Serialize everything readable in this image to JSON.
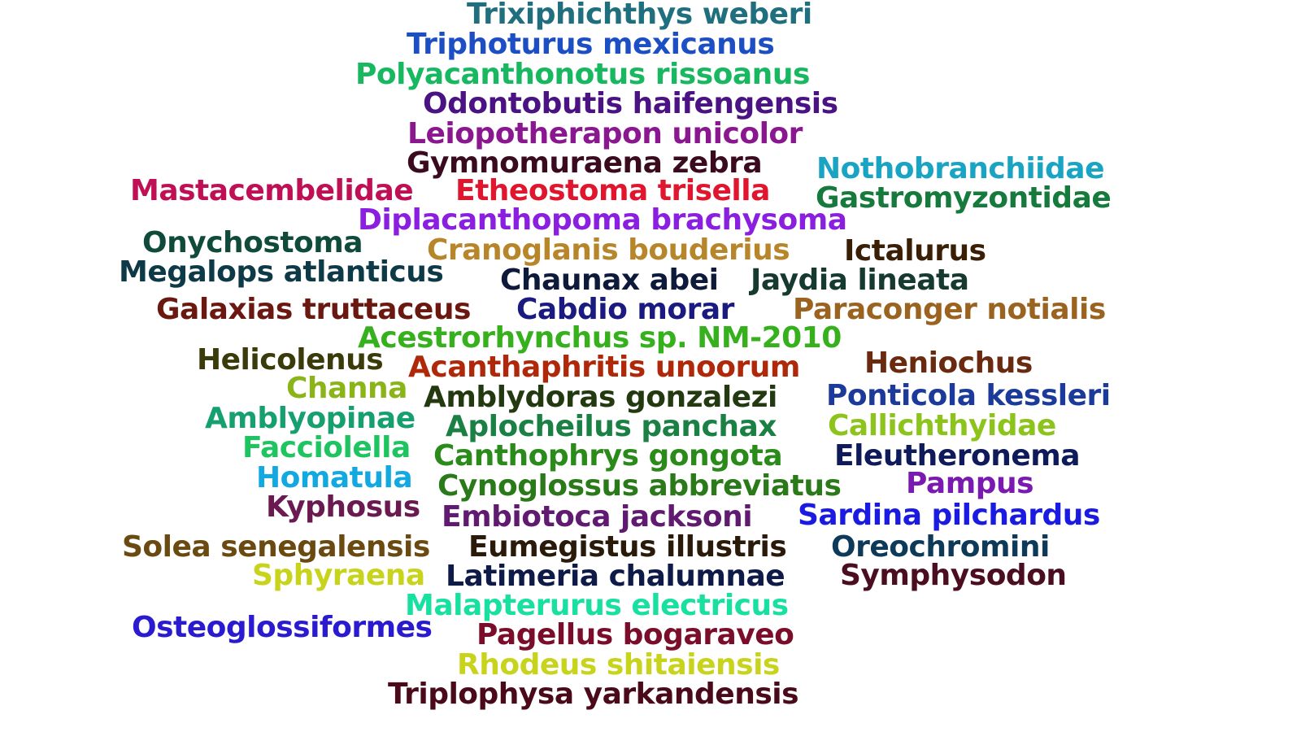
{
  "words": [
    {
      "text": "Trixiphichthys weberi",
      "color": "#1f6f7f"
    },
    {
      "text": "Triphoturus mexicanus",
      "color": "#1c4fc4"
    },
    {
      "text": "Polyacanthonotus rissoanus",
      "color": "#18b860"
    },
    {
      "text": "Odontobutis haifengensis",
      "color": "#4a1283"
    },
    {
      "text": "Leiopotherapon unicolor",
      "color": "#8b1790"
    },
    {
      "text": "Gymnomuraena zebra",
      "color": "#3a0a1e"
    },
    {
      "text": "Nothobranchiidae",
      "color": "#1aa4c4"
    },
    {
      "text": "Mastacembelidae",
      "color": "#c01055"
    },
    {
      "text": "Etheostoma trisella",
      "color": "#e0162e"
    },
    {
      "text": "Gastromyzontidae",
      "color": "#157a3c"
    },
    {
      "text": "Diplacanthopoma brachysoma",
      "color": "#8b1fe0"
    },
    {
      "text": "Onychostoma",
      "color": "#0f4a3a"
    },
    {
      "text": "Cranoglanis bouderius",
      "color": "#b8862a"
    },
    {
      "text": "Ictalurus",
      "color": "#3a1e06"
    },
    {
      "text": "Megalops atlanticus",
      "color": "#0e3a48"
    },
    {
      "text": "Chaunax abei",
      "color": "#0d1a3a"
    },
    {
      "text": "Jaydia lineata",
      "color": "#163a30"
    },
    {
      "text": "Galaxias truttaceus",
      "color": "#6a1810"
    },
    {
      "text": "Cabdio morar",
      "color": "#1a1a80"
    },
    {
      "text": "Paraconger notialis",
      "color": "#9a6420"
    },
    {
      "text": "Acestrorhynchus sp. NM-2010",
      "color": "#36b01c"
    },
    {
      "text": "Helicolenus",
      "color": "#3a3a0a"
    },
    {
      "text": "Acanthaphritis unoorum",
      "color": "#b0280a"
    },
    {
      "text": "Heniochus",
      "color": "#6a2a10"
    },
    {
      "text": "Channa",
      "color": "#8ab418"
    },
    {
      "text": "Amblydoras gonzalezi",
      "color": "#233a10"
    },
    {
      "text": "Ponticola kessleri",
      "color": "#1c3a9a"
    },
    {
      "text": "Amblyopinae",
      "color": "#16a070"
    },
    {
      "text": "Aplocheilus panchax",
      "color": "#1a8044"
    },
    {
      "text": "Callichthyidae",
      "color": "#8cc41c"
    },
    {
      "text": "Facciolella",
      "color": "#1ec460"
    },
    {
      "text": "Canthophrys gongota",
      "color": "#2a8a1a"
    },
    {
      "text": "Eleutheronema",
      "color": "#0e1a5a"
    },
    {
      "text": "Homatula",
      "color": "#12a8e0"
    },
    {
      "text": "Cynoglossus abbreviatus",
      "color": "#2a7a1a"
    },
    {
      "text": "Pampus",
      "color": "#7a1ab0"
    },
    {
      "text": "Kyphosus",
      "color": "#6a1a50"
    },
    {
      "text": "Embiotoca jacksoni",
      "color": "#601a70"
    },
    {
      "text": "Sardina pilchardus",
      "color": "#1a1ae0"
    },
    {
      "text": "Solea senegalensis",
      "color": "#6a4a10"
    },
    {
      "text": "Eumegistus illustris",
      "color": "#2a1a0a"
    },
    {
      "text": "Oreochromini",
      "color": "#0e3a5a"
    },
    {
      "text": "Sphyraena",
      "color": "#c8d41c"
    },
    {
      "text": "Latimeria chalumnae",
      "color": "#0e1a48"
    },
    {
      "text": "Symphysodon",
      "color": "#4a0e20"
    },
    {
      "text": "Malapterurus electricus",
      "color": "#18e0a0"
    },
    {
      "text": "Osteoglossiformes",
      "color": "#2a1ad0"
    },
    {
      "text": "Pagellus bogaraveo",
      "color": "#7a0e2a"
    },
    {
      "text": "Rhodeus shitaiensis",
      "color": "#c8d41c"
    },
    {
      "text": "Triplophysa yarkandensis",
      "color": "#4a0a1a"
    }
  ]
}
